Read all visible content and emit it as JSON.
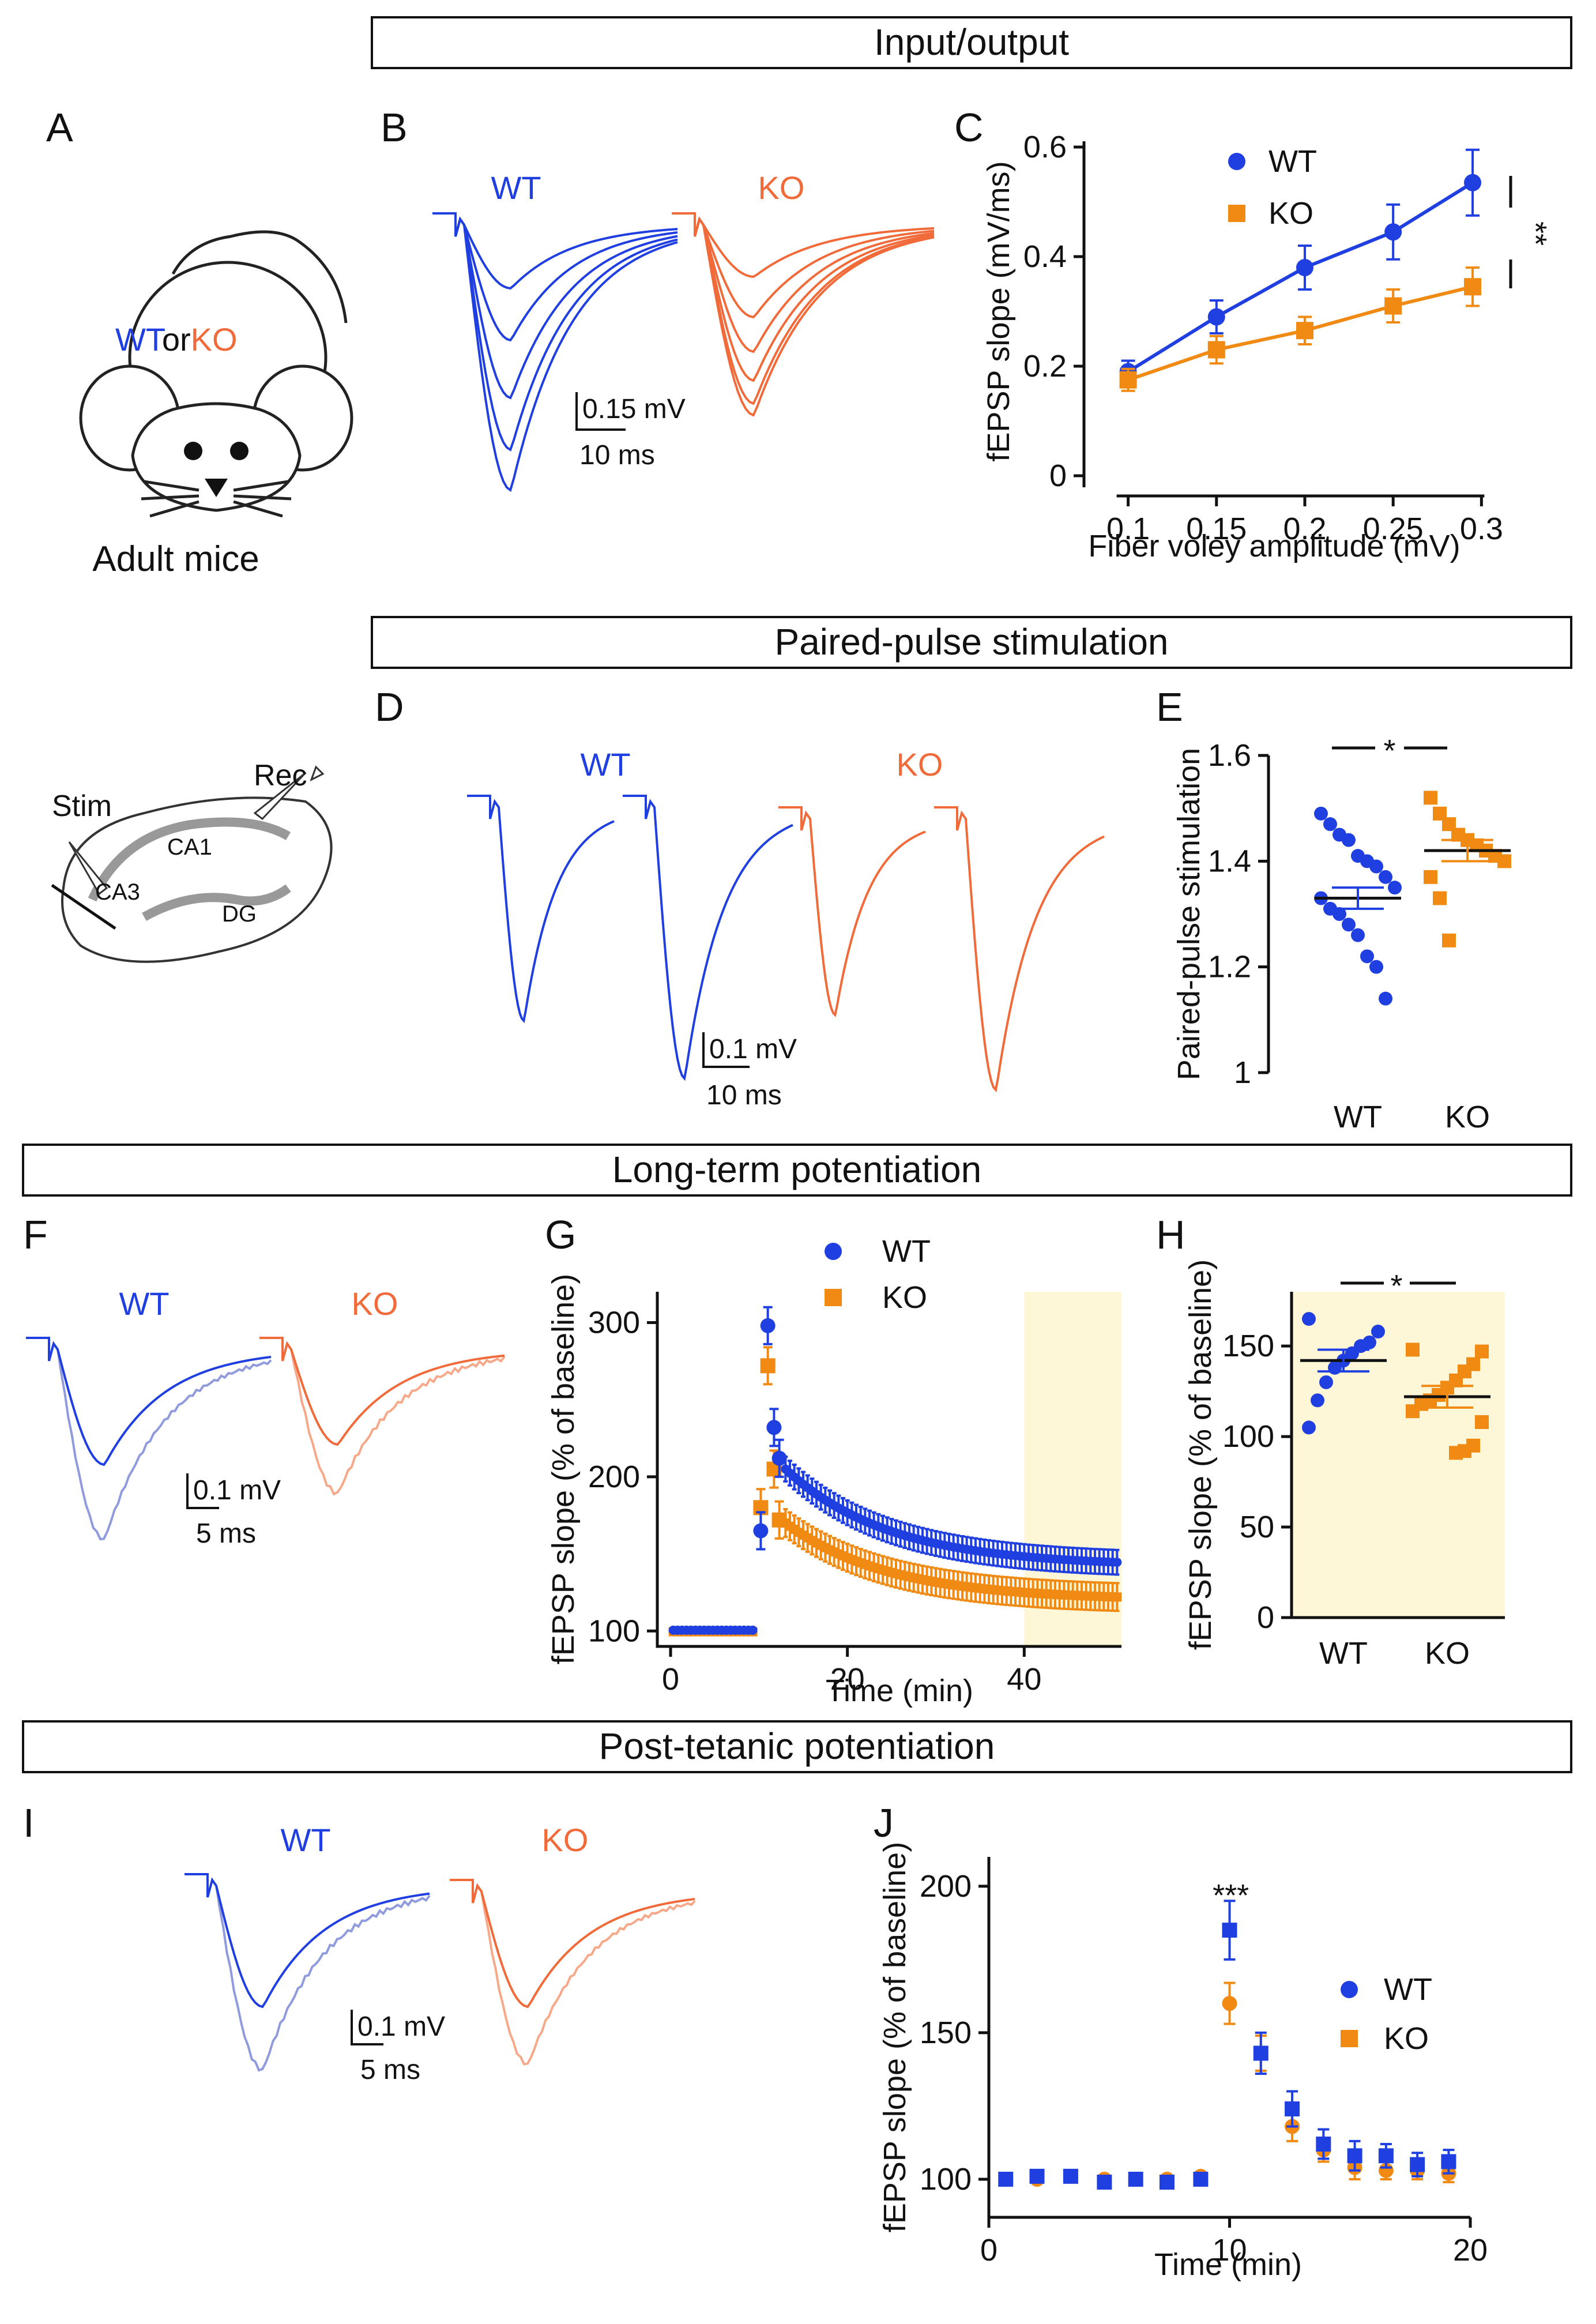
{
  "colors": {
    "wt": "#1f3fe0",
    "ko": "#f08a12",
    "wt_light": "#8f9bdc",
    "ko_light": "#f6a889",
    "ko_trace": "#f06a3a",
    "highlight": "#fdf7d8"
  },
  "headers": {
    "io": "Input/output",
    "pp": "Paired-pulse stimulation",
    "ltp": "Long-term potentiation",
    "ptp": "Post-tetanic potentiation"
  },
  "panels": {
    "A": "A",
    "B": "B",
    "C": "C",
    "D": "D",
    "E": "E",
    "F": "F",
    "G": "G",
    "H": "H",
    "I": "I",
    "J": "J"
  },
  "mouse": {
    "wt": "WT",
    "or": "or",
    "ko": "KO",
    "caption": "Adult mice"
  },
  "slice": {
    "stim": "Stim",
    "rec": "Rec",
    "ca1": "CA1",
    "ca3": "CA3",
    "dg": "DG"
  },
  "traces": {
    "wt": "WT",
    "ko": "KO",
    "b_scale_v": "0.15 mV",
    "b_scale_t": "10 ms",
    "d_scale_v": "0.1 mV",
    "d_scale_t": "10 ms",
    "f_scale_v": "0.1 mV",
    "f_scale_t": "5 ms",
    "i_scale_v": "0.1 mV",
    "i_scale_t": "5 ms"
  },
  "chart_data": [
    {
      "id": "C",
      "type": "line",
      "xlabel": "Fiber voley amplitude (mV)",
      "ylabel": "fEPSP slope (mV/ms)",
      "xlim": [
        0.075,
        0.31
      ],
      "ylim": [
        0,
        0.6
      ],
      "xticks": [
        "0.1",
        "0.15",
        "0.2",
        "0.25",
        "0.3"
      ],
      "yticks": [
        "0",
        "0.2",
        "0.4",
        "0.6"
      ],
      "legend": [
        "WT",
        "KO"
      ],
      "annotation": "**",
      "series": [
        {
          "name": "WT",
          "x": [
            0.1,
            0.15,
            0.2,
            0.25,
            0.295
          ],
          "y": [
            0.19,
            0.29,
            0.38,
            0.445,
            0.535
          ],
          "err": [
            0.02,
            0.03,
            0.04,
            0.05,
            0.06
          ]
        },
        {
          "name": "KO",
          "x": [
            0.1,
            0.15,
            0.2,
            0.25,
            0.295
          ],
          "y": [
            0.175,
            0.23,
            0.265,
            0.31,
            0.345
          ],
          "err": [
            0.02,
            0.025,
            0.025,
            0.03,
            0.035
          ]
        }
      ]
    },
    {
      "id": "E",
      "type": "scatter",
      "ylabel": "Paired-pulse stimulation",
      "ylim": [
        1,
        1.6
      ],
      "yticks": [
        "1",
        "1.2",
        "1.4",
        "1.6"
      ],
      "categories": [
        "WT",
        "KO"
      ],
      "annotation": "*",
      "series": [
        {
          "name": "WT",
          "mean": 1.33,
          "sem": 0.02,
          "values": [
            1.49,
            1.47,
            1.45,
            1.44,
            1.41,
            1.4,
            1.39,
            1.37,
            1.35,
            1.33,
            1.31,
            1.3,
            1.28,
            1.26,
            1.22,
            1.2,
            1.14
          ]
        },
        {
          "name": "KO",
          "mean": 1.42,
          "sem": 0.02,
          "values": [
            1.52,
            1.49,
            1.47,
            1.45,
            1.44,
            1.43,
            1.42,
            1.41,
            1.4,
            1.37,
            1.33,
            1.25
          ]
        }
      ]
    },
    {
      "id": "G",
      "type": "scatter",
      "xlabel": "Time (min)",
      "ylabel": "fEPSP slope (% of baseline)",
      "xlim": [
        -1.5,
        51
      ],
      "ylim": [
        90,
        320
      ],
      "xticks": [
        "0",
        "20",
        "40"
      ],
      "yticks": [
        "100",
        "200",
        "300"
      ],
      "legend": [
        "WT",
        "KO"
      ],
      "highlight_range": [
        40,
        51
      ],
      "series": [
        {
          "name": "WT",
          "baseline": 100,
          "peak": [
            [
              10.2,
              165
            ],
            [
              11,
              298
            ],
            [
              11.7,
              232
            ],
            [
              12.3,
              212
            ]
          ],
          "decay_start": 205,
          "decay_end": 142,
          "err": 8
        },
        {
          "name": "KO",
          "baseline": 100,
          "peak": [
            [
              10.2,
              180
            ],
            [
              11,
              272
            ],
            [
              11.7,
              205
            ],
            [
              12.3,
              172
            ]
          ],
          "decay_start": 170,
          "decay_end": 120,
          "err": 9
        }
      ]
    },
    {
      "id": "H",
      "type": "scatter",
      "ylabel": "fEPSP slope (% of baseline)",
      "ylim": [
        0,
        180
      ],
      "yticks": [
        "0",
        "50",
        "100",
        "150"
      ],
      "categories": [
        "WT",
        "KO"
      ],
      "annotation": "*",
      "series": [
        {
          "name": "WT",
          "mean": 142,
          "sem": 6,
          "values": [
            165,
            158,
            152,
            150,
            146,
            142,
            138,
            130,
            120,
            105
          ]
        },
        {
          "name": "KO",
          "mean": 122,
          "sem": 6,
          "values": [
            148,
            147,
            140,
            136,
            131,
            127,
            123,
            120,
            118,
            114,
            108,
            95,
            92,
            91
          ]
        }
      ]
    },
    {
      "id": "J",
      "type": "scatter",
      "xlabel": "Time (min)",
      "ylabel": "fEPSP slope (% of baseline)",
      "xlim": [
        0,
        20
      ],
      "ylim": [
        87,
        210
      ],
      "xticks": [
        "0",
        "10",
        "20"
      ],
      "yticks": [
        "100",
        "150",
        "200"
      ],
      "legend": [
        "WT",
        "KO"
      ],
      "annotation": "***",
      "series": [
        {
          "name": "WT",
          "x": [
            0.7,
            2,
            3.4,
            4.8,
            6.1,
            7.4,
            8.8,
            10,
            11.3,
            12.6,
            13.9,
            15.2,
            16.5,
            17.8,
            19.1
          ],
          "y": [
            100,
            101,
            101,
            99,
            100,
            99,
            100,
            185,
            143,
            124,
            112,
            108,
            108,
            105,
            106
          ],
          "err": [
            1,
            1,
            1,
            1,
            1,
            1,
            1,
            10,
            7,
            6,
            5,
            5,
            4,
            4,
            4
          ]
        },
        {
          "name": "KO",
          "x": [
            0.7,
            2,
            3.4,
            4.8,
            6.1,
            7.4,
            8.8,
            10,
            11.3,
            12.6,
            13.9,
            15.2,
            16.5,
            17.8,
            19.1
          ],
          "y": [
            100,
            100,
            101,
            100,
            100,
            100,
            101,
            160,
            143,
            118,
            110,
            104,
            103,
            103,
            102
          ],
          "err": [
            1,
            1,
            1,
            1,
            1,
            1,
            1,
            7,
            6,
            5,
            4,
            4,
            3,
            3,
            3
          ]
        }
      ]
    }
  ]
}
